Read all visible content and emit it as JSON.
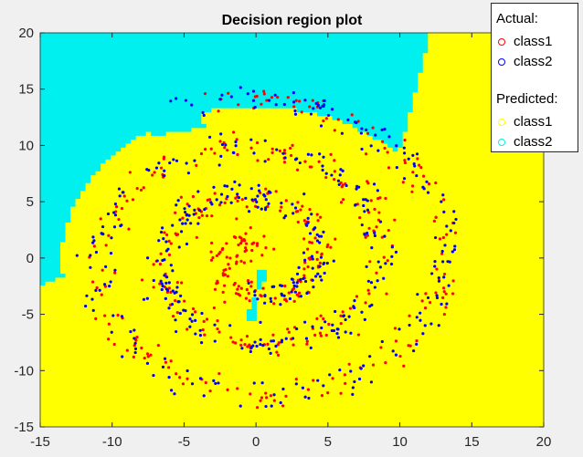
{
  "chart_data": {
    "type": "scatter",
    "title": "Decision region plot",
    "xlim": [
      -15,
      20
    ],
    "ylim": [
      -15,
      20
    ],
    "xticks": [
      -15,
      -10,
      -5,
      0,
      5,
      10,
      15,
      20
    ],
    "yticks": [
      -15,
      -10,
      -5,
      0,
      5,
      10,
      15,
      20
    ],
    "grid": false,
    "legend_position": "top-right",
    "region_colors": {
      "class1": "#ffff00",
      "class2": "#00f0f0"
    },
    "series": [
      {
        "name": "class1",
        "group": "Actual",
        "color": "#ff0000",
        "description": "Red spiral arm, about 500 points: starts near (0,2), loops through (-4,0), (0,-4), (6,-1), (7,4), (3,9), (-5,8), (-10,2), (-9,-5), (-3,-9), (5,-9), (11,-7), (14,-2)"
      },
      {
        "name": "class2",
        "group": "Actual",
        "color": "#0000ff",
        "description": "Blue spiral arm, about 500 points: starts near (0,-1), loops through (4,2), (0,5), (-5,3), (-6,-3), (0,-7), (7,-6), (10,2), (6,9), (-2,12), (-11,8), (-14,2)"
      }
    ],
    "spiral_model": {
      "class1": {
        "angle_start": 1.5708,
        "angle_end": 20.7,
        "radius_scale": 0.695,
        "noise": 0.35,
        "count": 500
      },
      "class2": {
        "angle_start": 4.7124,
        "angle_end": 20.8,
        "radius_scale": 0.695,
        "noise": 0.35,
        "count": 500
      }
    }
  },
  "legend": {
    "actual_heading": "Actual:",
    "predicted_heading": "Predicted:",
    "actual": [
      {
        "label": "class1",
        "color": "#ff0000"
      },
      {
        "label": "class2",
        "color": "#0000ff"
      }
    ],
    "predicted": [
      {
        "label": "class1",
        "color": "#ffff00"
      },
      {
        "label": "class2",
        "color": "#00f0f0"
      }
    ]
  }
}
